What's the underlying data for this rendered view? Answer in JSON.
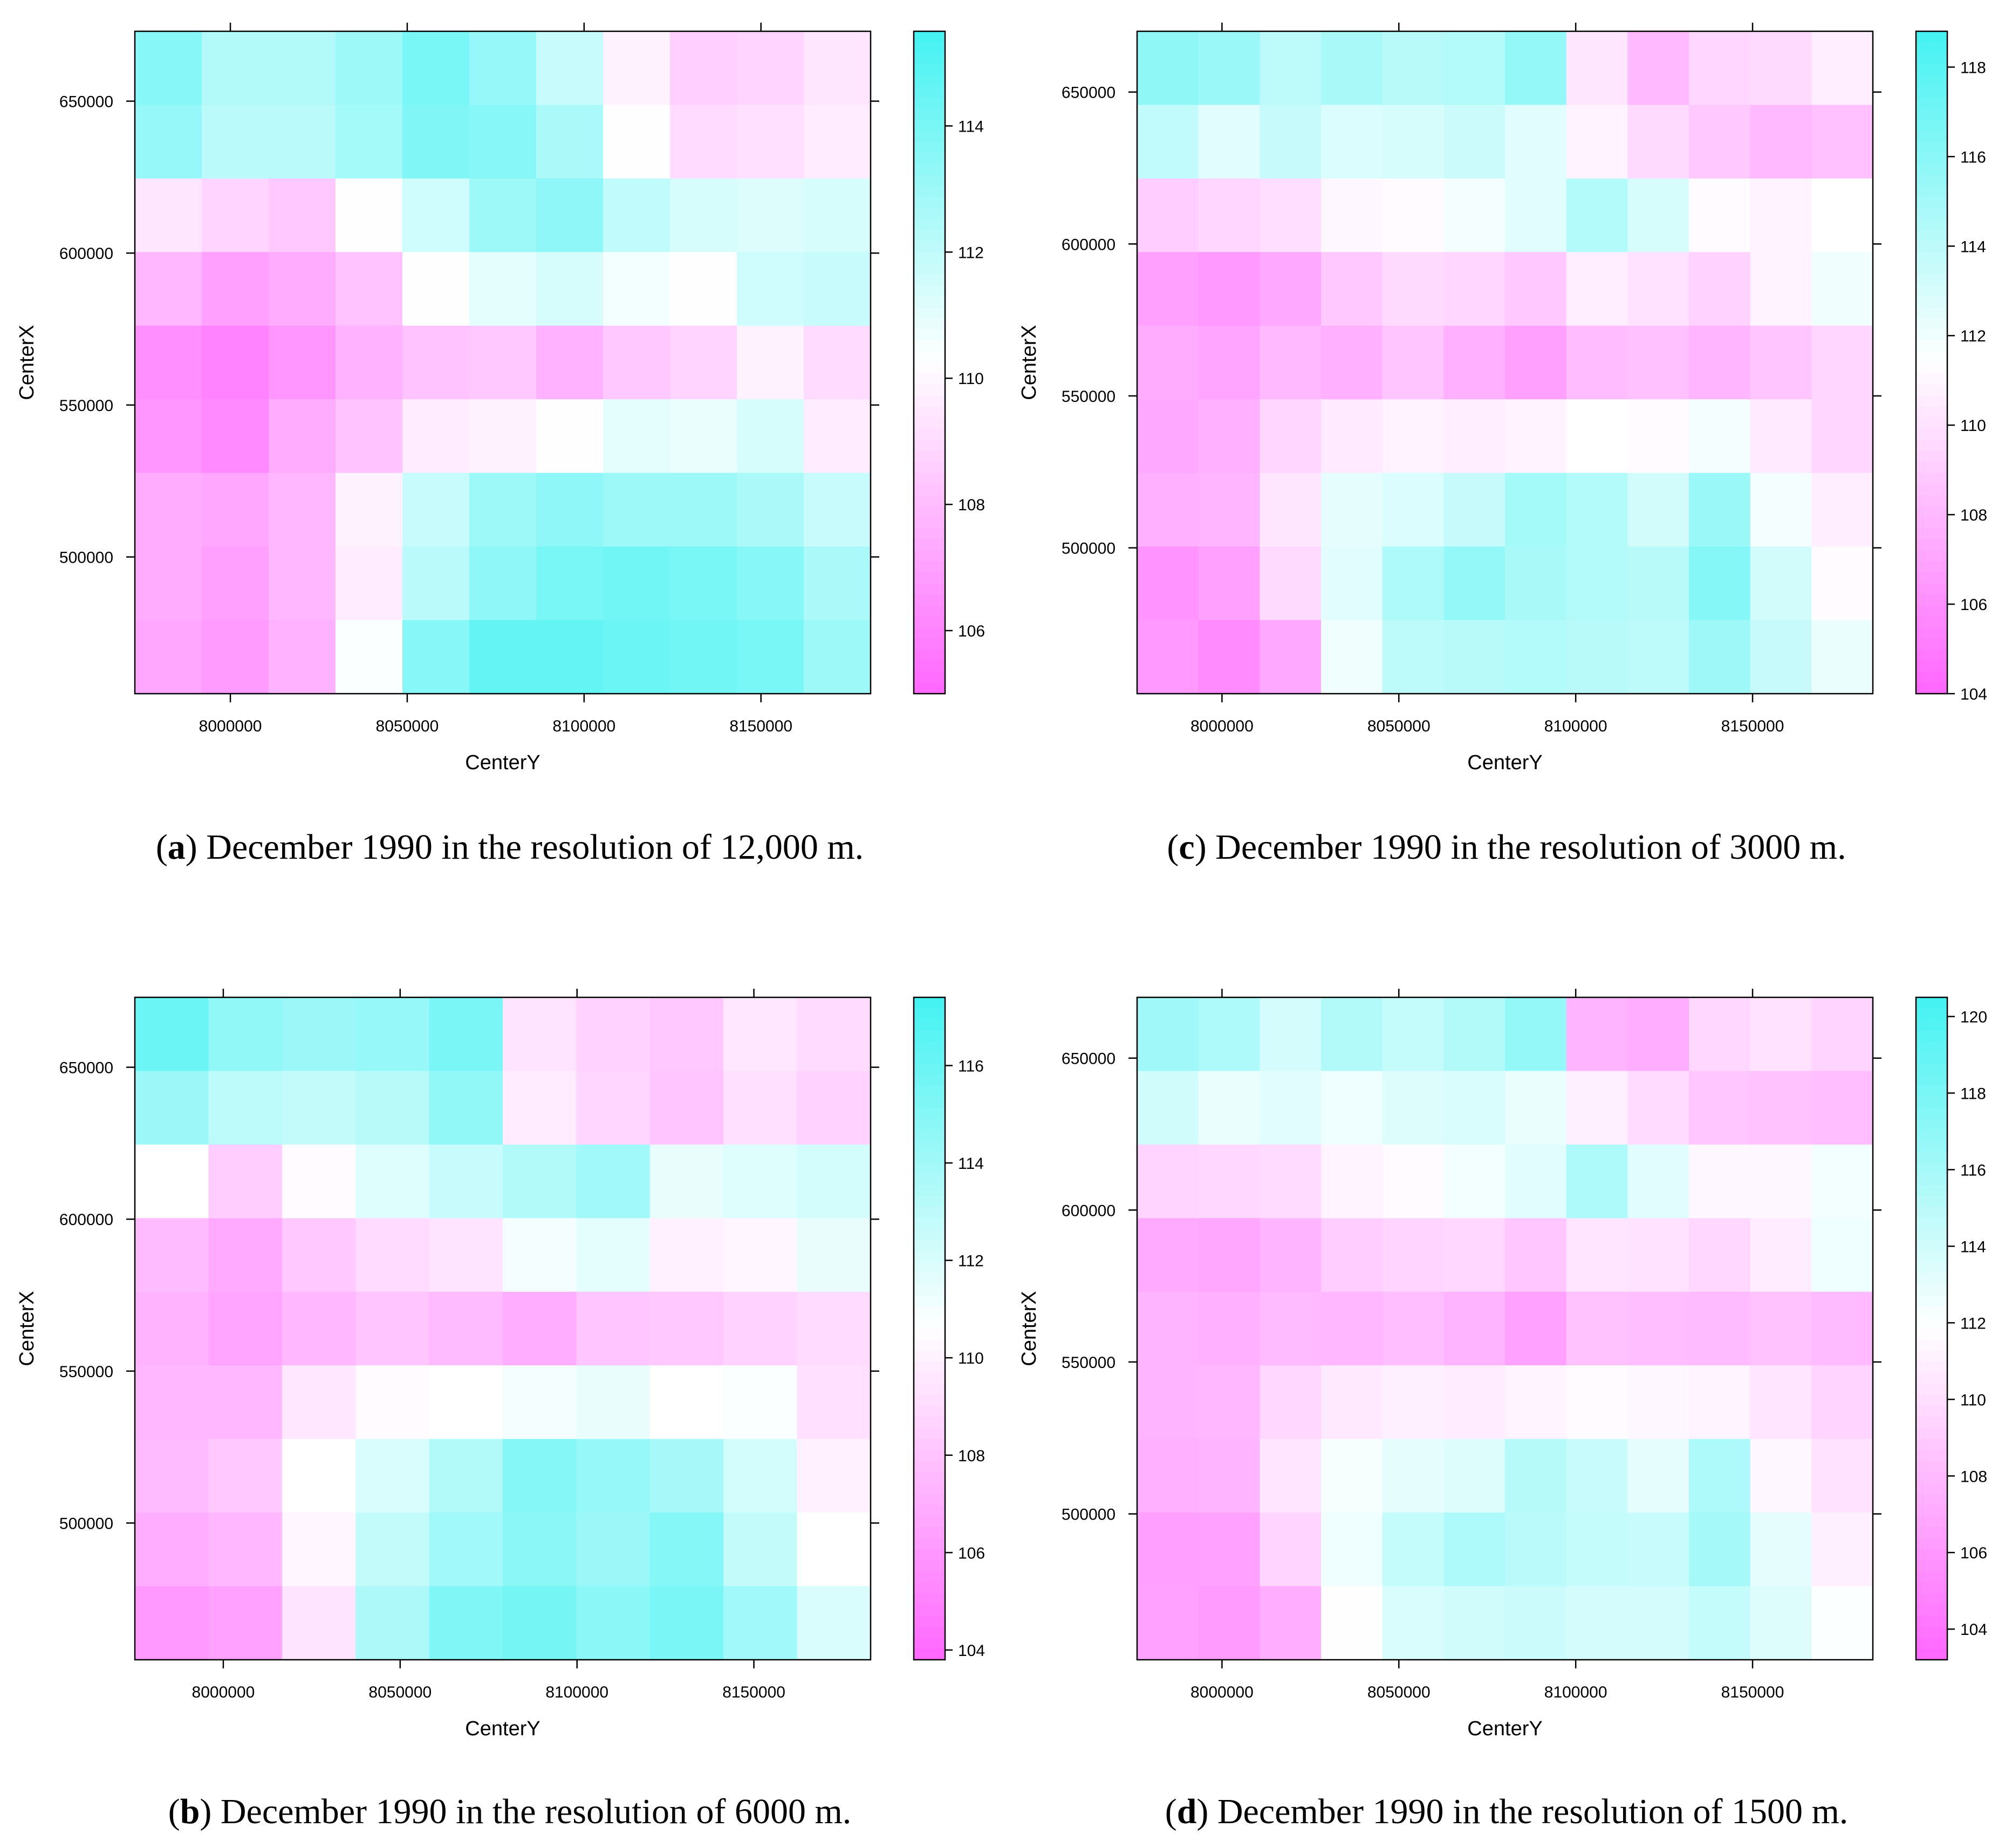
{
  "figure": {
    "panels": [
      "a",
      "c",
      "b",
      "d"
    ]
  },
  "colors": {
    "low": "#ff66ff",
    "mid": "#ffffff",
    "high": "#44f2f2",
    "frame": "#000000"
  },
  "chart_data": [
    {
      "id": "a",
      "type": "heatmap",
      "caption_letter": "a",
      "caption_text": ") December 1990 in the resolution of 12,000 m.",
      "caption_open": "(",
      "xlabel": "CenterY",
      "ylabel": "CenterX",
      "xlim": [
        7973000,
        8181000
      ],
      "ylim": [
        455000,
        673000
      ],
      "xticks": [
        "8000000",
        "8050000",
        "8100000",
        "8150000"
      ],
      "xtick_values": [
        8000000,
        8050000,
        8100000,
        8150000
      ],
      "yticks": [
        "500000",
        "550000",
        "600000",
        "650000"
      ],
      "ytick_values": [
        500000,
        550000,
        600000,
        650000
      ],
      "colorbar": {
        "range": [
          105,
          115.5
        ],
        "ticks": [
          "106",
          "108",
          "110",
          "112",
          "114"
        ],
        "tick_values": [
          106,
          108,
          110,
          112,
          114
        ]
      },
      "values": [
        [
          113.6,
          112.4,
          112.4,
          113.0,
          114.0,
          113.2,
          111.8,
          109.8,
          108.6,
          108.8,
          109.4
        ],
        [
          113.2,
          112.2,
          112.2,
          112.8,
          113.8,
          113.6,
          112.6,
          110.2,
          109.0,
          109.2,
          109.6
        ],
        [
          109.4,
          108.8,
          108.4,
          110.2,
          111.6,
          113.0,
          113.4,
          112.0,
          111.4,
          111.2,
          111.4
        ],
        [
          107.8,
          107.0,
          107.4,
          108.2,
          110.2,
          111.0,
          111.4,
          110.6,
          110.2,
          111.6,
          111.8
        ],
        [
          106.4,
          106.0,
          106.6,
          107.6,
          108.2,
          108.4,
          107.6,
          108.4,
          108.8,
          109.8,
          109.0
        ],
        [
          106.6,
          106.2,
          107.4,
          108.2,
          109.6,
          109.8,
          110.2,
          111.0,
          110.8,
          111.4,
          109.6
        ],
        [
          107.4,
          107.2,
          107.8,
          109.8,
          111.8,
          113.0,
          113.4,
          113.0,
          113.0,
          112.6,
          111.8
        ],
        [
          107.4,
          107.0,
          107.8,
          109.6,
          112.2,
          113.4,
          114.0,
          114.2,
          114.0,
          113.6,
          112.6
        ],
        [
          107.2,
          106.8,
          107.6,
          110.4,
          113.6,
          114.6,
          114.6,
          114.4,
          114.2,
          114.0,
          113.0
        ]
      ]
    },
    {
      "id": "c",
      "type": "heatmap",
      "caption_letter": "c",
      "caption_text": ") December 1990 in the resolution of 3000 m.",
      "caption_open": "(",
      "xlabel": "CenterY",
      "ylabel": "CenterX",
      "xlim": [
        7976000,
        8184000
      ],
      "ylim": [
        452000,
        670000
      ],
      "xticks": [
        "8000000",
        "8050000",
        "8100000",
        "8150000"
      ],
      "xtick_values": [
        8000000,
        8050000,
        8100000,
        8150000
      ],
      "yticks": [
        "500000",
        "550000",
        "600000",
        "650000"
      ],
      "ytick_values": [
        500000,
        550000,
        600000,
        650000
      ],
      "colorbar": {
        "range": [
          104,
          118.8
        ],
        "ticks": [
          "104",
          "106",
          "108",
          "110",
          "112",
          "114",
          "116",
          "118"
        ],
        "tick_values": [
          104,
          106,
          108,
          110,
          112,
          114,
          116,
          118
        ]
      },
      "values": [
        [
          115.8,
          115.4,
          114.0,
          114.8,
          114.2,
          114.4,
          115.6,
          110.2,
          108.0,
          109.4,
          109.6,
          110.6
        ],
        [
          113.8,
          112.6,
          113.6,
          112.8,
          113.0,
          113.4,
          112.6,
          110.8,
          109.6,
          108.8,
          108.0,
          108.4
        ],
        [
          109.0,
          109.4,
          109.8,
          111.0,
          111.2,
          111.8,
          112.6,
          114.4,
          113.0,
          111.2,
          110.8,
          111.4
        ],
        [
          106.8,
          106.4,
          107.2,
          108.8,
          109.6,
          109.4,
          108.8,
          110.6,
          110.0,
          109.2,
          110.8,
          112.0
        ],
        [
          107.4,
          107.0,
          108.0,
          107.6,
          108.6,
          107.6,
          106.8,
          108.2,
          108.4,
          107.8,
          108.6,
          109.4
        ],
        [
          107.2,
          107.6,
          109.4,
          110.4,
          110.8,
          110.6,
          110.8,
          111.4,
          111.2,
          111.8,
          110.4,
          109.4
        ],
        [
          107.6,
          107.8,
          110.2,
          112.4,
          112.8,
          113.6,
          115.0,
          114.4,
          113.2,
          115.4,
          111.8,
          110.6
        ],
        [
          106.2,
          106.8,
          109.6,
          112.6,
          114.6,
          115.6,
          114.8,
          114.4,
          114.2,
          116.2,
          113.2,
          111.2
        ],
        [
          106.4,
          105.8,
          107.2,
          112.0,
          114.0,
          114.2,
          114.4,
          114.2,
          114.0,
          115.2,
          113.6,
          112.2
        ]
      ]
    },
    {
      "id": "b",
      "type": "heatmap",
      "caption_letter": "b",
      "caption_text": ") December 1990 in the resolution of 6000 m.",
      "caption_open": "(",
      "xlabel": "CenterY",
      "ylabel": "CenterX",
      "xlim": [
        7975000,
        8183000
      ],
      "ylim": [
        455000,
        673000
      ],
      "xticks": [
        "8000000",
        "8050000",
        "8100000",
        "8150000"
      ],
      "xtick_values": [
        8000000,
        8050000,
        8100000,
        8150000
      ],
      "yticks": [
        "500000",
        "550000",
        "600000",
        "650000"
      ],
      "ytick_values": [
        500000,
        550000,
        600000,
        650000
      ],
      "colorbar": {
        "range": [
          103.8,
          117.4
        ],
        "ticks": [
          "104",
          "106",
          "108",
          "110",
          "112",
          "114",
          "116"
        ],
        "tick_values": [
          104,
          106,
          108,
          110,
          112,
          114,
          116
        ]
      },
      "values": [
        [
          116.0,
          114.6,
          114.2,
          114.4,
          115.4,
          109.4,
          108.6,
          108.2,
          109.6,
          109.0
        ],
        [
          114.2,
          113.0,
          112.8,
          113.2,
          114.6,
          109.8,
          108.8,
          108.0,
          109.2,
          108.6
        ],
        [
          110.6,
          108.4,
          110.4,
          111.8,
          112.6,
          113.4,
          114.0,
          111.4,
          111.8,
          112.2
        ],
        [
          107.6,
          106.8,
          108.2,
          109.0,
          109.4,
          111.0,
          111.6,
          110.0,
          110.2,
          111.4
        ],
        [
          107.2,
          106.6,
          107.4,
          108.0,
          107.6,
          107.0,
          108.0,
          108.2,
          108.6,
          109.0
        ],
        [
          107.4,
          107.4,
          109.6,
          110.4,
          110.6,
          111.0,
          111.4,
          110.6,
          110.8,
          109.2
        ],
        [
          107.6,
          108.2,
          110.6,
          112.0,
          113.4,
          115.0,
          114.4,
          113.8,
          112.2,
          110.0
        ],
        [
          107.0,
          107.4,
          110.2,
          112.8,
          114.0,
          114.8,
          114.2,
          115.0,
          112.8,
          110.6
        ],
        [
          106.0,
          106.4,
          109.4,
          113.6,
          115.2,
          115.6,
          114.8,
          115.4,
          114.0,
          112.0
        ]
      ]
    },
    {
      "id": "d",
      "type": "heatmap",
      "caption_letter": "d",
      "caption_text": ") December 1990 in the resolution of 1500 m.",
      "caption_open": "(",
      "xlabel": "CenterY",
      "ylabel": "CenterX",
      "xlim": [
        7976000,
        8184000
      ],
      "ylim": [
        452000,
        670000
      ],
      "xticks": [
        "8000000",
        "8050000",
        "8100000",
        "8150000"
      ],
      "xtick_values": [
        8000000,
        8050000,
        8100000,
        8150000
      ],
      "yticks": [
        "500000",
        "550000",
        "600000",
        "650000"
      ],
      "ytick_values": [
        500000,
        550000,
        600000,
        650000
      ],
      "colorbar": {
        "range": [
          103.2,
          120.5
        ],
        "ticks": [
          "104",
          "106",
          "108",
          "110",
          "112",
          "114",
          "116",
          "118",
          "120"
        ],
        "tick_values": [
          104,
          106,
          108,
          110,
          112,
          114,
          116,
          118,
          120
        ]
      },
      "values": [
        [
          116.2,
          115.6,
          113.8,
          115.4,
          114.6,
          115.4,
          116.8,
          107.6,
          107.2,
          109.6,
          110.2,
          109.4
        ],
        [
          114.0,
          112.8,
          113.2,
          112.6,
          113.4,
          113.6,
          112.8,
          111.0,
          109.8,
          108.6,
          108.4,
          108.2
        ],
        [
          109.4,
          109.6,
          109.8,
          111.2,
          111.6,
          112.4,
          113.2,
          115.6,
          113.2,
          111.4,
          111.4,
          112.4
        ],
        [
          107.0,
          106.8,
          107.6,
          109.0,
          109.4,
          109.6,
          108.6,
          110.4,
          110.2,
          109.6,
          110.8,
          112.6
        ],
        [
          107.6,
          107.4,
          108.0,
          107.8,
          108.2,
          107.6,
          106.6,
          108.4,
          108.2,
          108.0,
          108.4,
          108.0
        ],
        [
          107.6,
          107.8,
          109.6,
          110.6,
          111.0,
          110.8,
          111.2,
          111.6,
          111.4,
          111.2,
          110.4,
          109.4
        ],
        [
          107.4,
          107.6,
          110.4,
          112.2,
          113.0,
          113.4,
          115.2,
          114.4,
          113.0,
          115.6,
          111.4,
          110.2
        ],
        [
          106.4,
          106.6,
          109.4,
          112.6,
          114.6,
          115.6,
          115.0,
          114.6,
          114.4,
          116.0,
          113.0,
          111.0
        ],
        [
          106.6,
          106.2,
          107.2,
          111.8,
          113.6,
          114.0,
          114.2,
          113.8,
          113.8,
          114.6,
          113.4,
          112.0
        ]
      ]
    }
  ]
}
